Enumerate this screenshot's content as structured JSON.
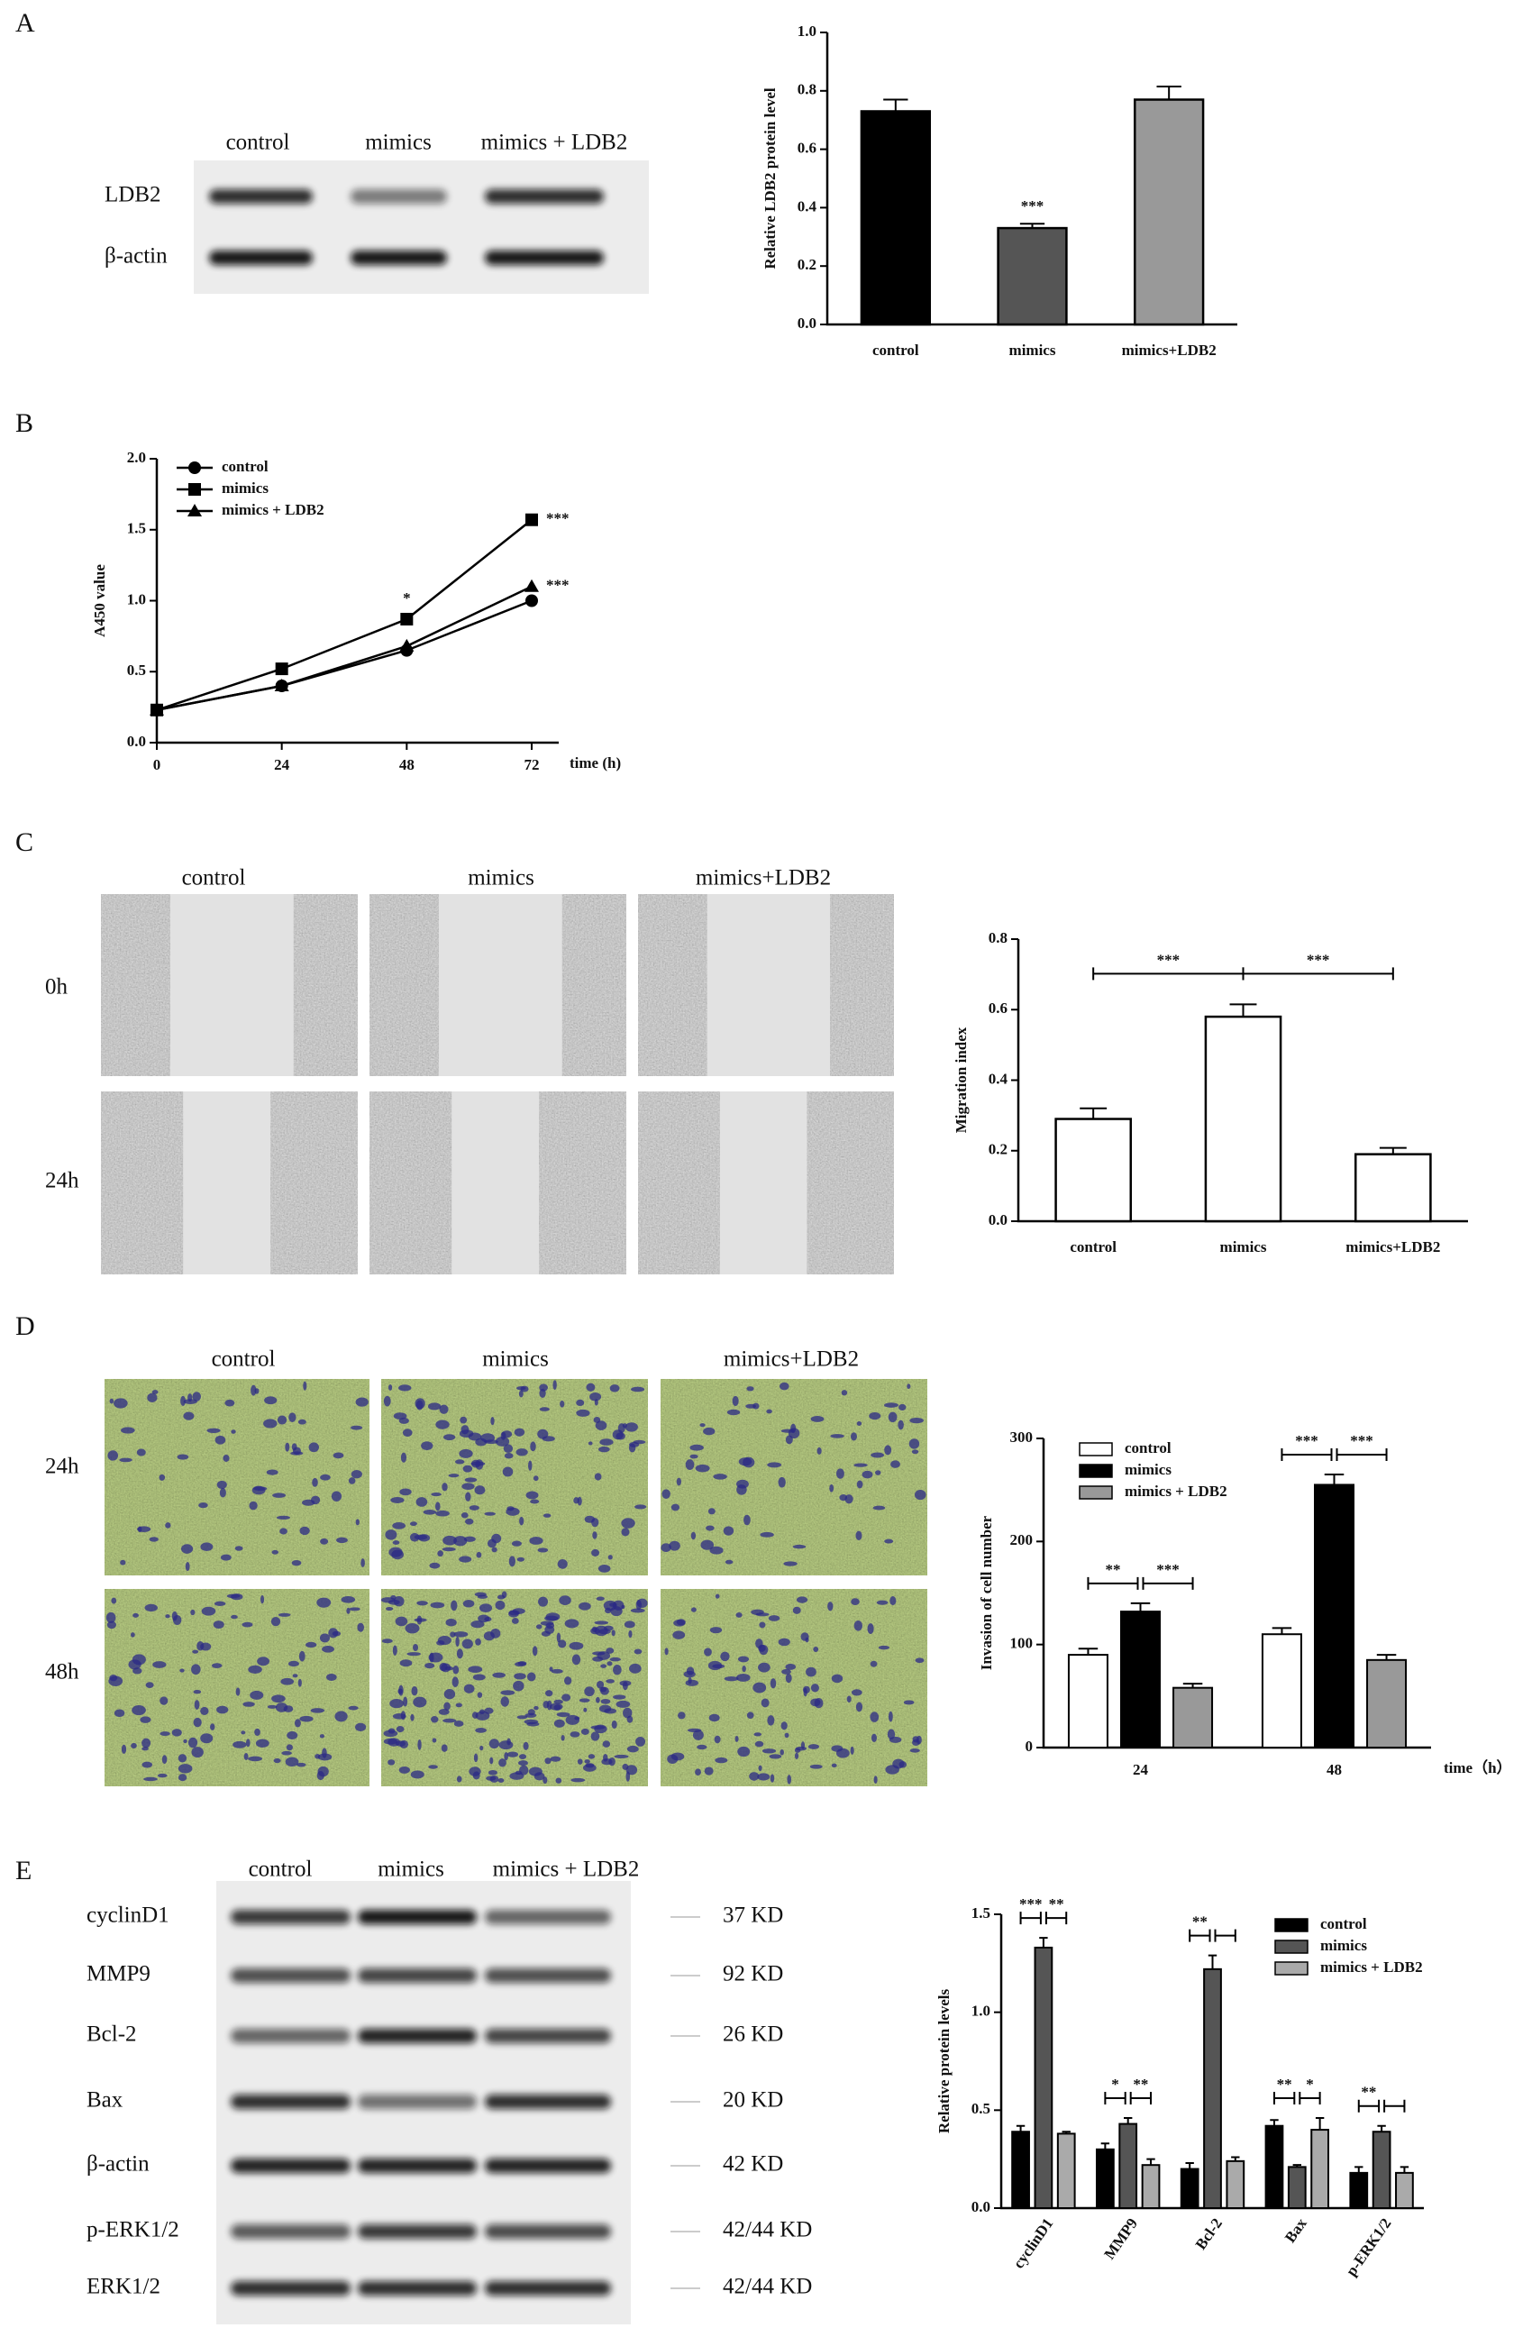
{
  "panels": [
    "A",
    "B",
    "C",
    "D",
    "E"
  ],
  "blot_a": {
    "columns": [
      "control",
      "mimics",
      "mimics + LDB2"
    ],
    "rows": [
      "LDB2",
      "β-actin"
    ]
  },
  "images_c": {
    "columns": [
      "control",
      "mimics",
      "mimics+LDB2"
    ],
    "rows": [
      "0h",
      "24h"
    ]
  },
  "images_d": {
    "columns": [
      "control",
      "mimics",
      "mimics+LDB2"
    ],
    "rows": [
      "24h",
      "48h"
    ]
  },
  "blot_e": {
    "columns": [
      "control",
      "mimics",
      "mimics + LDB2"
    ],
    "rows": [
      "cyclinD1",
      "MMP9",
      "Bcl-2",
      "Bax",
      "β-actin",
      "p-ERK1/2",
      "ERK1/2"
    ],
    "sizes": [
      "37 KD",
      "92 KD",
      "26 KD",
      "20 KD",
      "42 KD",
      "42/44 KD",
      "42/44 KD"
    ]
  },
  "chart_data": [
    {
      "type": "bar",
      "ylabel": "Relative LDB2 protein level",
      "categories": [
        "control",
        "mimics",
        "mimics+LDB2"
      ],
      "values": [
        0.73,
        0.33,
        0.77
      ],
      "errors": [
        0.04,
        0.015,
        0.045
      ],
      "colors": [
        "#000000",
        "#555555",
        "#999999"
      ],
      "ylim": [
        0,
        1.0
      ],
      "yticks": [
        {
          "value": 0,
          "label": "0.0"
        },
        0.2,
        0.4,
        0.6,
        0.8,
        {
          "value": 1,
          "label": "1.0"
        }
      ],
      "annotations": [
        {
          "text": "***",
          "category": "mimics"
        }
      ]
    },
    {
      "type": "line",
      "xlabel": "time (h)",
      "ylabel": "A450 value",
      "x": [
        0,
        24,
        48,
        72
      ],
      "series": [
        {
          "name": "control",
          "color": "#000000",
          "marker": "circle",
          "values": [
            0.23,
            0.4,
            0.65,
            1.0
          ]
        },
        {
          "name": "mimics",
          "color": "#000000",
          "marker": "square",
          "values": [
            0.23,
            0.52,
            0.87,
            1.57
          ]
        },
        {
          "name": "mimics + LDB2",
          "color": "#000000",
          "marker": "triangle",
          "values": [
            0.23,
            0.4,
            0.68,
            1.1
          ]
        }
      ],
      "xlim": [
        0,
        72
      ],
      "xticks": [
        0,
        24,
        48,
        72
      ],
      "ylim": [
        0,
        2.0
      ],
      "yticks": [
        {
          "value": 0,
          "label": "0.0"
        },
        0.5,
        {
          "value": 1,
          "label": "1.0"
        },
        1.5,
        {
          "value": 2,
          "label": "2.0"
        }
      ],
      "legend": "upper left",
      "annotations": [
        {
          "text": "*",
          "x": 48,
          "series": "mimics"
        },
        {
          "text": "***",
          "x": 72,
          "series": "mimics"
        },
        {
          "text": "***",
          "x": 72,
          "series": "mimics + LDB2"
        }
      ]
    },
    {
      "type": "bar",
      "ylabel": "Migration index",
      "categories": [
        "control",
        "mimics",
        "mimics+LDB2"
      ],
      "values": [
        0.29,
        0.58,
        0.19
      ],
      "errors": [
        0.03,
        0.035,
        0.018
      ],
      "colors": [
        "#ffffff",
        "#ffffff",
        "#ffffff"
      ],
      "ylim": [
        0,
        0.8
      ],
      "yticks": [
        {
          "value": 0,
          "label": "0.0"
        },
        0.2,
        0.4,
        0.6,
        0.8
      ],
      "annotations": [
        {
          "text": "***",
          "between": [
            "control",
            "mimics"
          ]
        },
        {
          "text": "***",
          "between": [
            "mimics",
            "mimics+LDB2"
          ]
        }
      ]
    },
    {
      "type": "bar",
      "xlabel": "time（h）",
      "ylabel": "Invasion of cell number",
      "categories": [
        "24",
        "48"
      ],
      "series": [
        {
          "name": "control",
          "color": "#ffffff",
          "values": [
            90,
            110
          ],
          "errors": [
            6,
            6
          ]
        },
        {
          "name": "mimics",
          "color": "#000000",
          "values": [
            132,
            255
          ],
          "errors": [
            8,
            10
          ]
        },
        {
          "name": "mimics + LDB2",
          "color": "#999999",
          "values": [
            58,
            85
          ],
          "errors": [
            4,
            5
          ]
        }
      ],
      "ylim": [
        0,
        300
      ],
      "yticks": [
        0,
        100,
        200,
        300
      ],
      "legend": "upper left",
      "annotations": [
        {
          "text": "**",
          "category": "24",
          "between": [
            "control",
            "mimics"
          ]
        },
        {
          "text": "***",
          "category": "24",
          "between": [
            "mimics",
            "mimics + LDB2"
          ]
        },
        {
          "text": "***",
          "category": "48",
          "between": [
            "control",
            "mimics"
          ]
        },
        {
          "text": "***",
          "category": "48",
          "between": [
            "mimics",
            "mimics + LDB2"
          ]
        }
      ]
    },
    {
      "type": "bar",
      "ylabel": "Relative protein levels",
      "categories": [
        "cyclinD1",
        "MMP9",
        "Bcl-2",
        "Bax",
        "p-ERK1/2"
      ],
      "series": [
        {
          "name": "control",
          "color": "#000000",
          "values": [
            0.39,
            0.3,
            0.2,
            0.42,
            0.18
          ],
          "errors": [
            0.03,
            0.03,
            0.03,
            0.03,
            0.03
          ]
        },
        {
          "name": "mimics",
          "color": "#555555",
          "values": [
            1.33,
            0.43,
            1.22,
            0.21,
            0.39
          ],
          "errors": [
            0.05,
            0.03,
            0.07,
            0.01,
            0.03
          ]
        },
        {
          "name": "mimics + LDB2",
          "color": "#aaaaaa",
          "values": [
            0.38,
            0.22,
            0.24,
            0.4,
            0.18
          ],
          "errors": [
            0.01,
            0.03,
            0.02,
            0.06,
            0.03
          ]
        }
      ],
      "ylim": [
        0,
        1.5
      ],
      "yticks": [
        {
          "value": 0,
          "label": "0.0"
        },
        0.5,
        {
          "value": 1,
          "label": "1.0"
        },
        1.5
      ],
      "legend": "upper right",
      "brackets": true,
      "annotations": [
        {
          "text": "***",
          "category": "cyclinD1",
          "between": [
            "control",
            "mimics"
          ]
        },
        {
          "text": "**",
          "category": "cyclinD1",
          "between": [
            "mimics",
            "mimics + LDB2"
          ]
        },
        {
          "text": "*",
          "category": "MMP9",
          "between": [
            "control",
            "mimics"
          ]
        },
        {
          "text": "**",
          "category": "MMP9",
          "between": [
            "mimics",
            "mimics + LDB2"
          ]
        },
        {
          "text": "**",
          "category": "Bcl-2",
          "between": [
            "control",
            "mimics"
          ]
        },
        {
          "text": "**",
          "category": "Bax",
          "between": [
            "control",
            "mimics"
          ]
        },
        {
          "text": "*",
          "category": "Bax",
          "between": [
            "mimics",
            "mimics + LDB2"
          ]
        },
        {
          "text": "**",
          "category": "p-ERK1/2",
          "between": [
            "control",
            "mimics"
          ]
        }
      ]
    }
  ]
}
